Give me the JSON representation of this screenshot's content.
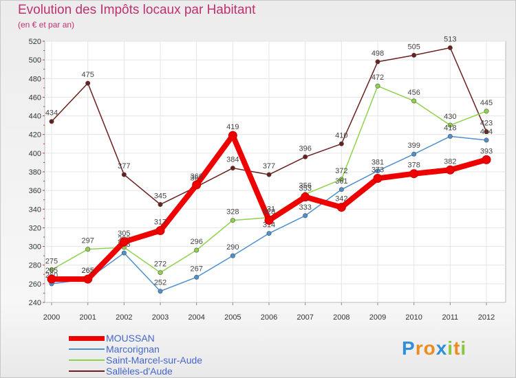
{
  "chart_data": {
    "type": "line",
    "title": "Evolution des Impôts locaux par Habitant",
    "subtitle": "(en € et par an)",
    "xlabel": "",
    "ylabel": "",
    "ylim": [
      240,
      520
    ],
    "y_ticks": [
      "240",
      "260",
      "280",
      "300",
      "320",
      "340",
      "360",
      "380",
      "400",
      "420",
      "440",
      "460",
      "480",
      "500",
      "520"
    ],
    "categories": [
      "2000",
      "2001",
      "2002",
      "2003",
      "2004",
      "2005",
      "2006",
      "2007",
      "2008",
      "2009",
      "2010",
      "2011",
      "2012"
    ],
    "grid": true,
    "legend_position": "bottom-left",
    "series": [
      {
        "name": "Sallèles-d'Aude",
        "color": "#6b1e1e",
        "values": [
          434,
          475,
          377,
          345,
          364,
          384,
          377,
          396,
          410,
          498,
          505,
          513,
          423
        ]
      },
      {
        "name": "Saint-Marcel-sur-Aude",
        "color": "#8ed24a",
        "values": [
          275,
          297,
          299,
          272,
          296,
          328,
          331,
          356,
          372,
          472,
          456,
          430,
          445
        ]
      },
      {
        "name": "Marcorignan",
        "color": "#4d8fcf",
        "values": [
          260,
          265,
          293,
          252,
          267,
          290,
          314,
          333,
          361,
          381,
          399,
          418,
          414
        ]
      },
      {
        "name": "MOUSSAN",
        "color": "#ee0000",
        "values": [
          265,
          265,
          305,
          317,
          366,
          419,
          328,
          353,
          342,
          373,
          378,
          382,
          393
        ]
      }
    ]
  },
  "legend": {
    "items": [
      {
        "name": "MOUSSAN",
        "color": "#ee0000"
      },
      {
        "name": "Marcorignan",
        "color": "#4d8fcf"
      },
      {
        "name": "Saint-Marcel-sur-Aude",
        "color": "#8ed24a"
      },
      {
        "name": "Sallèles-d'Aude",
        "color": "#6b1e1e"
      }
    ]
  },
  "brand": {
    "letters": [
      "P",
      "r",
      "o",
      "x",
      "i",
      "t",
      "i"
    ],
    "colors": [
      "#2f8fd8",
      "#f08a1c",
      "#f08a1c",
      "#2f8fd8",
      "#8cc63f",
      "#f08a1c",
      "#8cc63f"
    ]
  }
}
